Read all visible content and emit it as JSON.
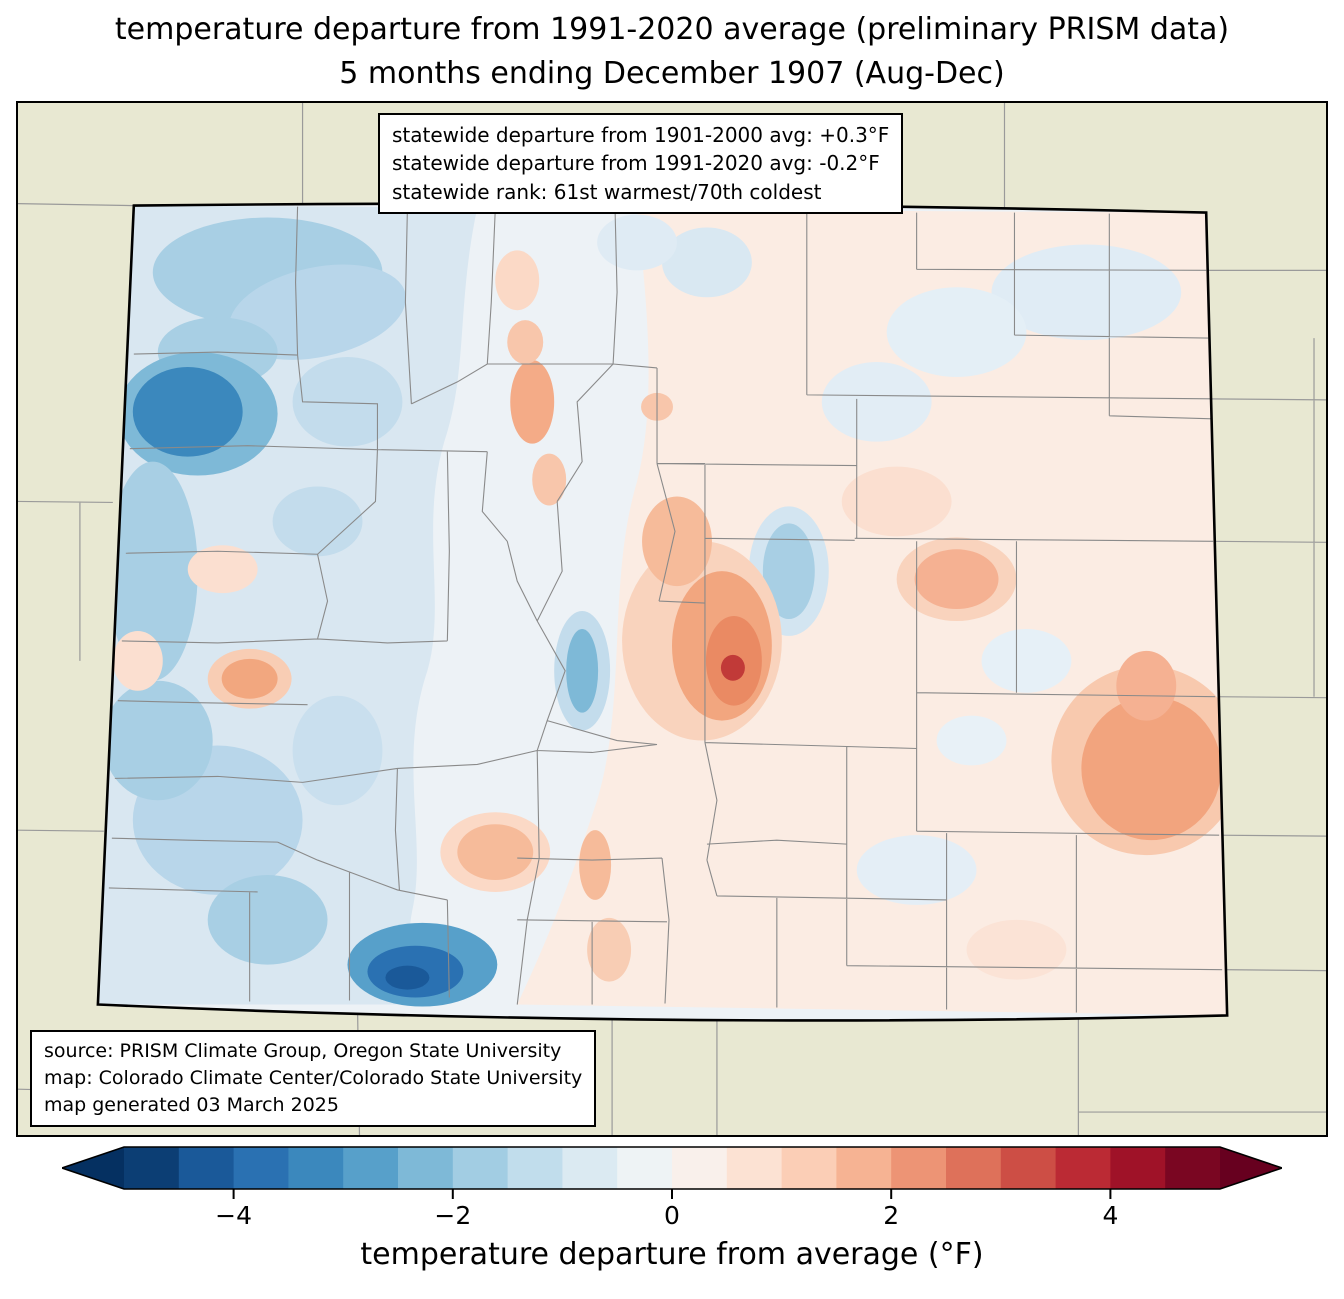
{
  "title": {
    "line1": "temperature departure from 1991-2020 average (preliminary PRISM data)",
    "line2": "5 months ending December 1907 (Aug-Dec)"
  },
  "stats_box": {
    "line1": "statewide departure from 1901-2000 avg: +0.3°F",
    "line2": "statewide departure from 1991-2020 avg: -0.2°F",
    "line3": "statewide rank: 61st warmest/70th coldest"
  },
  "source_box": {
    "line1": "source: PRISM Climate Group, Oregon State University",
    "line2": "map: Colorado Climate Center/Colorado State University",
    "line3": "map generated 03 March 2025"
  },
  "map": {
    "region": "Colorado",
    "palette": {
      "outside_fill": "#e8e8d2",
      "state_base": "#edf2f6",
      "county_line": "#8a8a8a",
      "state_border": "#000000",
      "blue_light": "#d9e7f1",
      "blue_medium": "#a8cfe4",
      "blue_strong": "#3b88bd",
      "blue_dark": "#1a5999",
      "pink_light": "#fbece3",
      "peach": "#f8c8ae",
      "salmon": "#f2a17c",
      "red_medium": "#de715a",
      "red_dark": "#c13a38"
    }
  },
  "colorbar": {
    "label": "temperature departure from average (°F)",
    "range": [
      -5,
      5
    ],
    "ticks": [
      {
        "label": "−4",
        "value": -4
      },
      {
        "label": "−2",
        "value": -2
      },
      {
        "label": "0",
        "value": 0
      },
      {
        "label": "2",
        "value": 2
      },
      {
        "label": "4",
        "value": 4
      }
    ],
    "segment_colors": [
      "#0c3e74",
      "#1a5999",
      "#2a71b2",
      "#3b88bd",
      "#57a0ca",
      "#7eb9d7",
      "#a2cde3",
      "#c1ddec",
      "#dbeaf2",
      "#eef3f5",
      "#f9f0eb",
      "#fce2d3",
      "#fbceb6",
      "#f6b393",
      "#ed9475",
      "#de715a",
      "#cd4e45",
      "#bb2a34",
      "#9f1228",
      "#7a0622"
    ],
    "left_arrow_color": "#053061",
    "right_arrow_color": "#67001f"
  }
}
